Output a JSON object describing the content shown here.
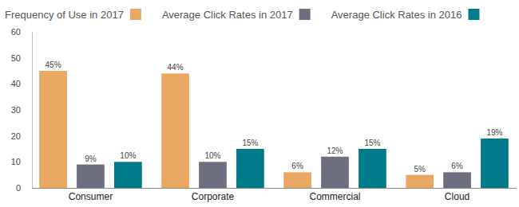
{
  "chart_data": {
    "type": "bar",
    "categories": [
      "Consumer",
      "Corporate",
      "Commercial",
      "Cloud"
    ],
    "series": [
      {
        "name": "Frequency of Use in 2017",
        "color": "#e9a862",
        "values": [
          45,
          44,
          6,
          5
        ],
        "value_labels": [
          "45%",
          "44%",
          "6%",
          "5%"
        ]
      },
      {
        "name": "Average Click Rates in 2017",
        "color": "#6d6f80",
        "values": [
          9,
          10,
          12,
          6
        ],
        "value_labels": [
          "9%",
          "10%",
          "12%",
          "6%"
        ]
      },
      {
        "name": "Average Click Rates in 2016",
        "color": "#007b8a",
        "values": [
          10,
          15,
          15,
          19
        ],
        "value_labels": [
          "10%",
          "15%",
          "15%",
          "19%"
        ]
      }
    ],
    "ylim": [
      0,
      60
    ],
    "yticks": [
      0,
      10,
      20,
      30,
      40,
      50,
      60
    ],
    "grid": false,
    "legend": "top",
    "data_labels": true
  }
}
